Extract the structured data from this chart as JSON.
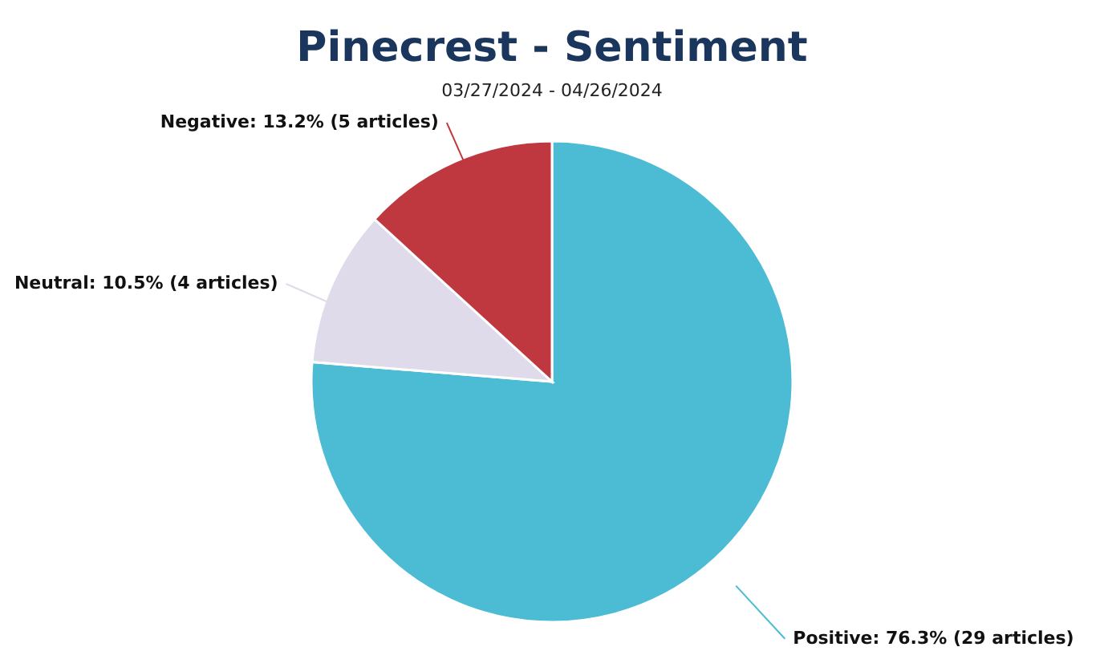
{
  "chart_data": {
    "type": "pie",
    "title": "Pinecrest - Sentiment",
    "subtitle": "03/27/2024 - 04/26/2024",
    "categories": [
      "Positive",
      "Neutral",
      "Negative"
    ],
    "values": [
      76.3,
      10.5,
      13.2
    ],
    "colors": [
      "#4bbcd3",
      "#e0dbea",
      "#c0383f"
    ],
    "value_labels": [
      ": 76.3% (29 articles)",
      ": 10.5% (4 articles)",
      ": 13.2% (5 articles)"
    ],
    "legend": false
  }
}
